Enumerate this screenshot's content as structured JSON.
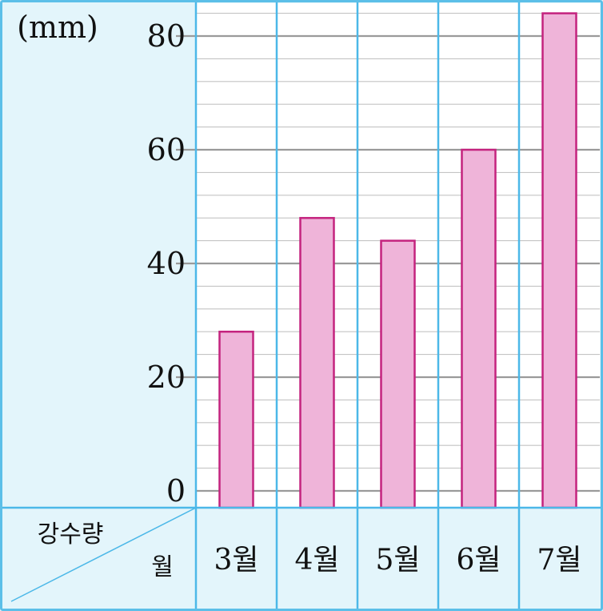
{
  "chart_data": {
    "type": "bar",
    "unit": "(mm)",
    "header_value_label": "강수량",
    "header_category_label": "월",
    "categories": [
      "3월",
      "4월",
      "5월",
      "6월",
      "7월"
    ],
    "values": [
      28,
      48,
      44,
      60,
      84
    ],
    "ylim": [
      0,
      86
    ],
    "yticks": [
      0,
      20,
      40,
      60,
      80
    ],
    "minor_step": 4,
    "grid": true,
    "colors": {
      "panel_bg": "#e3f5fb",
      "plot_bg": "#ffffff",
      "divider": "#4cb8e8",
      "major_grid": "#9a9a9a",
      "minor_grid": "#c4c4c4",
      "bar_fill": "#efb4d9",
      "bar_stroke": "#c4237e",
      "border": "#5cbfe8"
    }
  }
}
